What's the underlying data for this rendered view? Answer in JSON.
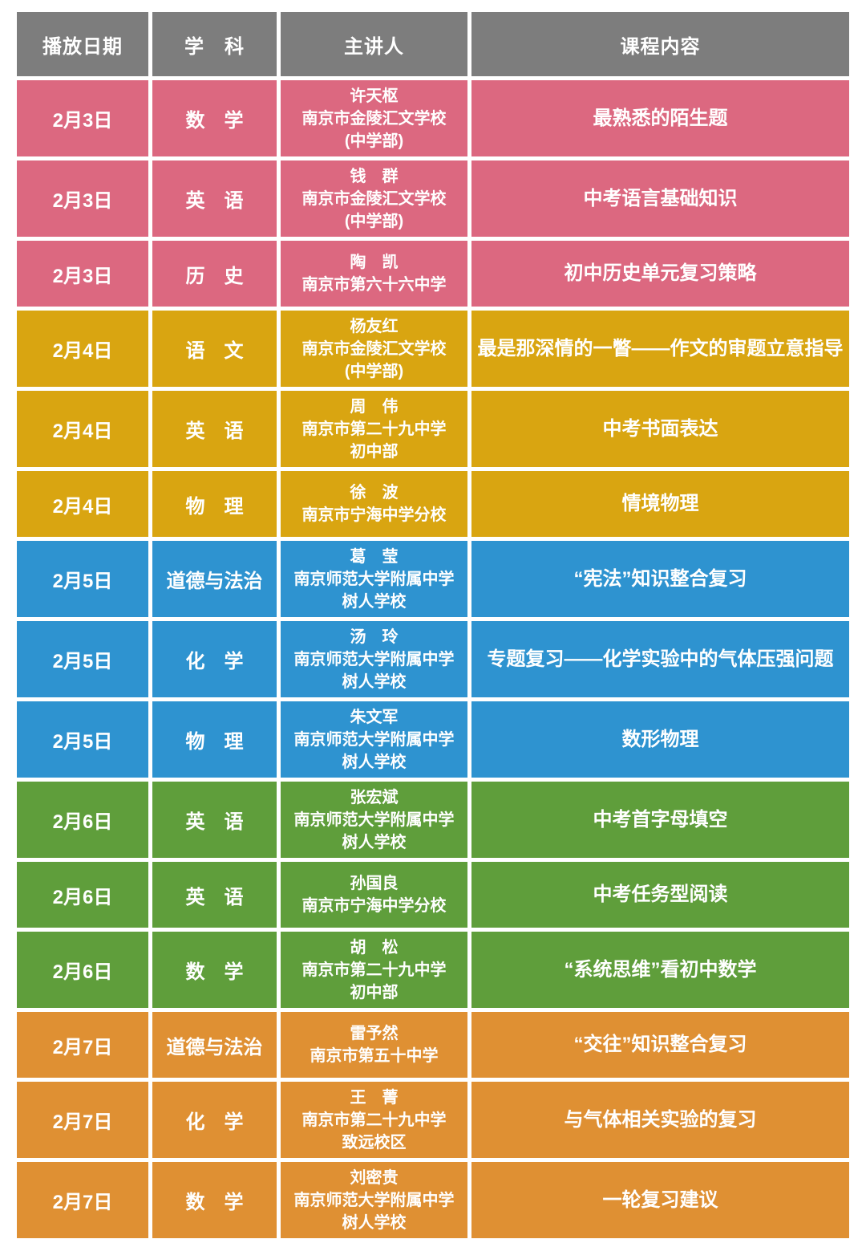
{
  "chart_data": {
    "type": "table",
    "columns": [
      "播放日期",
      "学　科",
      "主讲人",
      "课程内容"
    ],
    "colors": {
      "header": "#7d7d7d",
      "feb3": "#dc6880",
      "feb4": "#d9a511",
      "feb5": "#2e93d0",
      "feb6": "#5f9e3b",
      "feb7": "#df9033"
    },
    "rows": [
      {
        "date": "2月3日",
        "subject": "数　学",
        "lecturer_lines": [
          "许天枢",
          "南京市金陵汇文学校",
          "(中学部)"
        ],
        "content": "最熟悉的陌生题",
        "color": "feb3"
      },
      {
        "date": "2月3日",
        "subject": "英　语",
        "lecturer_lines": [
          "钱　群",
          "南京市金陵汇文学校",
          "(中学部)"
        ],
        "content": "中考语言基础知识",
        "color": "feb3"
      },
      {
        "date": "2月3日",
        "subject": "历　史",
        "lecturer_lines": [
          "陶　凯",
          "南京市第六十六中学"
        ],
        "content": "初中历史单元复习策略",
        "color": "feb3"
      },
      {
        "date": "2月4日",
        "subject": "语　文",
        "lecturer_lines": [
          "杨友红",
          "南京市金陵汇文学校",
          "(中学部)"
        ],
        "content": "最是那深情的一瞥——作文的审题立意指导",
        "color": "feb4"
      },
      {
        "date": "2月4日",
        "subject": "英　语",
        "lecturer_lines": [
          "周　伟",
          "南京市第二十九中学",
          "初中部"
        ],
        "content": "中考书面表达",
        "color": "feb4"
      },
      {
        "date": "2月4日",
        "subject": "物　理",
        "lecturer_lines": [
          "徐　波",
          "南京市宁海中学分校"
        ],
        "content": "情境物理",
        "color": "feb4"
      },
      {
        "date": "2月5日",
        "subject": "道德与法治",
        "lecturer_lines": [
          "葛　莹",
          "南京师范大学附属中学",
          "树人学校"
        ],
        "content": "“宪法”知识整合复习",
        "color": "feb5"
      },
      {
        "date": "2月5日",
        "subject": "化　学",
        "lecturer_lines": [
          "汤　玲",
          "南京师范大学附属中学",
          "树人学校"
        ],
        "content": "专题复习——化学实验中的气体压强问题",
        "color": "feb5"
      },
      {
        "date": "2月5日",
        "subject": "物　理",
        "lecturer_lines": [
          "朱文军",
          "南京师范大学附属中学",
          "树人学校"
        ],
        "content": "数形物理",
        "color": "feb5"
      },
      {
        "date": "2月6日",
        "subject": "英　语",
        "lecturer_lines": [
          "张宏斌",
          "南京师范大学附属中学",
          "树人学校"
        ],
        "content": "中考首字母填空",
        "color": "feb6"
      },
      {
        "date": "2月6日",
        "subject": "英　语",
        "lecturer_lines": [
          "孙国良",
          "南京市宁海中学分校"
        ],
        "content": "中考任务型阅读",
        "color": "feb6"
      },
      {
        "date": "2月6日",
        "subject": "数　学",
        "lecturer_lines": [
          "胡　松",
          "南京市第二十九中学",
          "初中部"
        ],
        "content": "“系统思维”看初中数学",
        "color": "feb6"
      },
      {
        "date": "2月7日",
        "subject": "道德与法治",
        "lecturer_lines": [
          "雷予然",
          "南京市第五十中学"
        ],
        "content": "“交往”知识整合复习",
        "color": "feb7"
      },
      {
        "date": "2月7日",
        "subject": "化　学",
        "lecturer_lines": [
          "王　菁",
          "南京市第二十九中学",
          "致远校区"
        ],
        "content": "与气体相关实验的复习",
        "color": "feb7"
      },
      {
        "date": "2月7日",
        "subject": "数　学",
        "lecturer_lines": [
          "刘密贵",
          "南京师范大学附属中学",
          "树人学校"
        ],
        "content": "一轮复习建议",
        "color": "feb7"
      }
    ]
  }
}
